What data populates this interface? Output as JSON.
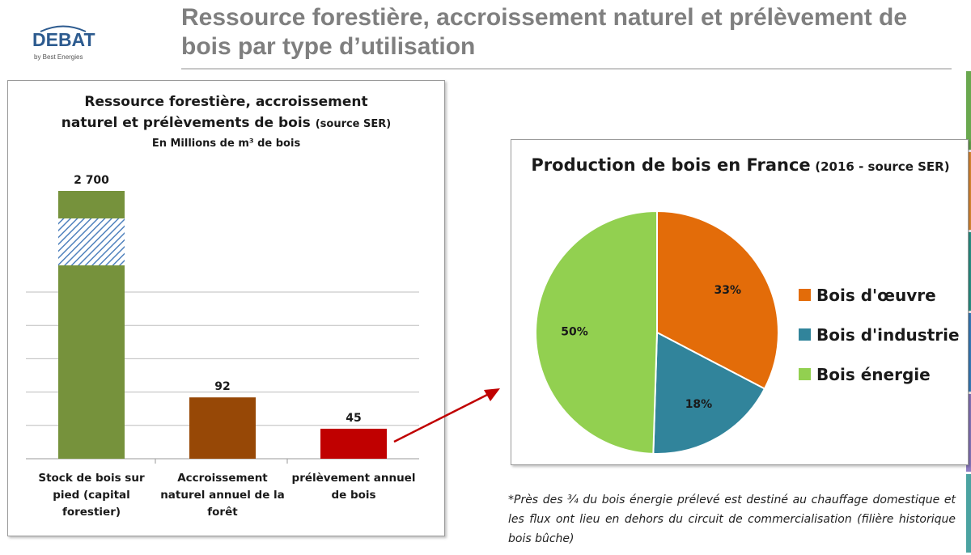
{
  "logo": {
    "brand": "DEBAT",
    "tagline": "by Best Energies"
  },
  "slide": {
    "title": "Ressource forestière, accroissement naturel et prélèvement de bois par type d’utilisation",
    "edge_colors": [
      "#6aa84f",
      "#e69138",
      "#2e9c8f",
      "#3d85c6",
      "#8e7cc3",
      "#4ba3a1"
    ]
  },
  "note": "*Près des ¾ du bois énergie prélevé est destiné au chauffage domestique et les flux ont lieu en dehors du circuit de commercialisation (filière historique bois bûche)",
  "chart_data": [
    {
      "type": "bar",
      "title_line1": "Ressource forestière, accroissement",
      "title_line2": "naturel et prélèvements de bois",
      "title_source": "(source SER)",
      "subtitle": "En Millions de m³ de bois",
      "categories": [
        "Stock de bois sur pied (capital forestier)",
        "Accroissement naturel annuel de la forêt",
        "prélèvement annuel de bois"
      ],
      "category_lines": [
        [
          "Stock de bois sur",
          "pied (capital",
          "forestier)"
        ],
        [
          "Accroissement",
          "naturel annuel de la",
          "forêt"
        ],
        [
          "prélèvement annuel",
          "de bois"
        ]
      ],
      "values": [
        2700,
        92,
        45
      ],
      "value_labels": [
        "2 700",
        "92",
        "45"
      ],
      "colors": [
        "#76923c",
        "#974806",
        "#c00000"
      ],
      "hatch_color": "#4f81bd",
      "axis_break": true,
      "grid": true,
      "ylim": [
        0,
        250
      ]
    },
    {
      "type": "pie",
      "title": "Production de bois en France",
      "title_source": "(2016 - source SER)",
      "labels": [
        "Bois d'œuvre",
        "Bois d'industrie",
        "Bois énergie"
      ],
      "values": [
        33,
        18,
        50
      ],
      "value_labels": [
        "33%",
        "18%",
        "50%"
      ],
      "colors": [
        "#e36c09",
        "#31849b",
        "#92d050"
      ],
      "legend_position": "right"
    }
  ]
}
